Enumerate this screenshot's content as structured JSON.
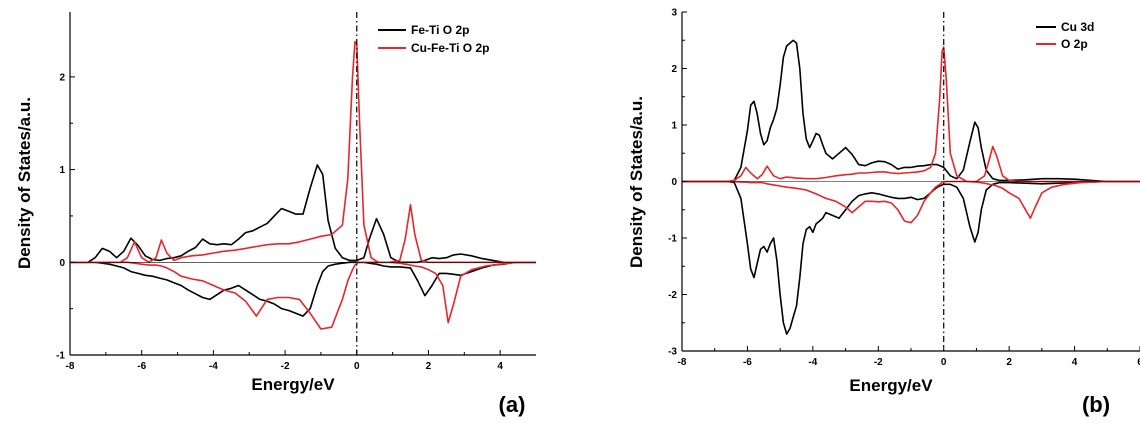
{
  "chart_data": [
    {
      "type": "line",
      "panel_label": "(a)",
      "xlabel": "Energy/eV",
      "ylabel": "Density of States/a.u.",
      "xlim": [
        -8,
        5
      ],
      "ylim": [
        -1,
        2.7
      ],
      "xticks": [
        -8,
        -6,
        -4,
        -2,
        0,
        2,
        4
      ],
      "yticks": [
        -1,
        0,
        1,
        2
      ],
      "fermi_level": 0,
      "legend_position": "top-right",
      "series": [
        {
          "name": "Fe-Ti O 2p",
          "color": "#000000",
          "x": [
            -8,
            -7.5,
            -7.3,
            -7.1,
            -6.9,
            -6.7,
            -6.5,
            -6.3,
            -6.1,
            -5.9,
            -5.7,
            -5.5,
            -5.3,
            -5.1,
            -4.9,
            -4.7,
            -4.5,
            -4.3,
            -4.1,
            -3.9,
            -3.7,
            -3.5,
            -3.3,
            -3.1,
            -2.9,
            -2.7,
            -2.5,
            -2.3,
            -2.1,
            -1.9,
            -1.7,
            -1.5,
            -1.3,
            -1.1,
            -0.95,
            -0.8,
            -0.6,
            -0.4,
            -0.2,
            0,
            0.2,
            0.35,
            0.55,
            0.75,
            0.95,
            1.2,
            1.5,
            1.7,
            1.9,
            2.1,
            2.3,
            2.5,
            2.7,
            2.9,
            3.2,
            3.5,
            3.8,
            4.1,
            4.4,
            4.7,
            5
          ],
          "y_up": [
            0,
            0,
            0.05,
            0.15,
            0.12,
            0.05,
            0.12,
            0.26,
            0.18,
            0.07,
            0.03,
            0.02,
            0.04,
            0.05,
            0.07,
            0.12,
            0.16,
            0.25,
            0.2,
            0.19,
            0.2,
            0.19,
            0.25,
            0.32,
            0.34,
            0.38,
            0.42,
            0.5,
            0.58,
            0.55,
            0.52,
            0.52,
            0.8,
            1.05,
            0.95,
            0.45,
            0.15,
            0.05,
            0.02,
            0.02,
            0.05,
            0.25,
            0.47,
            0.3,
            0.05,
            0,
            0,
            0,
            0.02,
            0.05,
            0.04,
            0.05,
            0.08,
            0.09,
            0.07,
            0.04,
            0.02,
            0,
            0,
            0,
            0
          ],
          "y_down": [
            0,
            0,
            0,
            -0.01,
            -0.02,
            -0.04,
            -0.06,
            -0.1,
            -0.12,
            -0.14,
            -0.15,
            -0.17,
            -0.19,
            -0.22,
            -0.25,
            -0.3,
            -0.34,
            -0.38,
            -0.4,
            -0.35,
            -0.3,
            -0.28,
            -0.25,
            -0.3,
            -0.35,
            -0.4,
            -0.42,
            -0.45,
            -0.5,
            -0.52,
            -0.55,
            -0.58,
            -0.5,
            -0.25,
            -0.1,
            -0.04,
            -0.02,
            -0.01,
            0,
            0,
            0,
            -0.01,
            -0.02,
            -0.04,
            -0.05,
            -0.05,
            -0.06,
            -0.2,
            -0.36,
            -0.25,
            -0.12,
            -0.12,
            -0.13,
            -0.14,
            -0.1,
            -0.06,
            -0.03,
            -0.02,
            0,
            0,
            0
          ]
        },
        {
          "name": "Cu-Fe-Ti O 2p",
          "color": "#e8262a",
          "x": [
            -8,
            -7,
            -6.6,
            -6.4,
            -6.2,
            -6.0,
            -5.8,
            -5.6,
            -5.45,
            -5.3,
            -5.1,
            -4.9,
            -4.6,
            -4.3,
            -4.0,
            -3.7,
            -3.4,
            -3.1,
            -2.8,
            -2.5,
            -2.2,
            -1.9,
            -1.6,
            -1.3,
            -1.0,
            -0.7,
            -0.4,
            -0.25,
            -0.12,
            -0.05,
            0,
            0.08,
            0.2,
            0.4,
            0.6,
            0.9,
            1.2,
            1.35,
            1.5,
            1.62,
            1.8,
            2.0,
            2.2,
            2.4,
            2.55,
            2.7,
            2.9,
            3.2,
            3.6,
            4.0,
            4.5,
            5
          ],
          "y_up": [
            0,
            0,
            0,
            0.05,
            0.22,
            0.05,
            0,
            0.05,
            0.24,
            0.1,
            0.02,
            0.05,
            0.07,
            0.08,
            0.1,
            0.12,
            0.13,
            0.15,
            0.17,
            0.19,
            0.2,
            0.2,
            0.22,
            0.25,
            0.28,
            0.3,
            0.4,
            0.9,
            2.0,
            2.38,
            2.35,
            1.5,
            0.4,
            0.05,
            0,
            0,
            0.02,
            0.25,
            0.62,
            0.3,
            0.02,
            0,
            0,
            0,
            0,
            0,
            0,
            0,
            0,
            0,
            0,
            0
          ],
          "y_down": [
            0,
            0,
            0,
            0,
            -0.01,
            -0.02,
            -0.03,
            -0.03,
            -0.04,
            -0.06,
            -0.1,
            -0.15,
            -0.18,
            -0.2,
            -0.25,
            -0.3,
            -0.33,
            -0.42,
            -0.58,
            -0.4,
            -0.38,
            -0.38,
            -0.4,
            -0.55,
            -0.72,
            -0.7,
            -0.4,
            -0.2,
            -0.08,
            -0.03,
            -0.01,
            0,
            0,
            0,
            0,
            0,
            -0.01,
            -0.02,
            -0.03,
            -0.04,
            -0.05,
            -0.08,
            -0.12,
            -0.25,
            -0.65,
            -0.45,
            -0.15,
            -0.08,
            -0.04,
            -0.02,
            0,
            0
          ]
        }
      ]
    },
    {
      "type": "line",
      "panel_label": "(b)",
      "xlabel": "Energy/eV",
      "ylabel": "Density of States/a.u.",
      "xlim": [
        -8,
        6
      ],
      "ylim": [
        -3,
        3
      ],
      "xticks": [
        -8,
        -6,
        -4,
        -2,
        0,
        2,
        4,
        6
      ],
      "yticks": [
        -3,
        -2,
        -1,
        0,
        1,
        2,
        3
      ],
      "fermi_level": 0,
      "legend_position": "top-right",
      "series": [
        {
          "name": "Cu 3d",
          "color": "#000000",
          "x": [
            -8,
            -6.6,
            -6.4,
            -6.2,
            -6.0,
            -5.9,
            -5.8,
            -5.7,
            -5.6,
            -5.5,
            -5.4,
            -5.3,
            -5.2,
            -5.1,
            -5.0,
            -4.9,
            -4.8,
            -4.7,
            -4.6,
            -4.5,
            -4.4,
            -4.3,
            -4.2,
            -4.1,
            -4.0,
            -3.9,
            -3.8,
            -3.7,
            -3.6,
            -3.4,
            -3.2,
            -3.0,
            -2.8,
            -2.6,
            -2.4,
            -2.2,
            -2.0,
            -1.8,
            -1.6,
            -1.4,
            -1.2,
            -1.0,
            -0.8,
            -0.6,
            -0.4,
            -0.2,
            0,
            0.2,
            0.4,
            0.6,
            0.8,
            0.95,
            1.05,
            1.15,
            1.3,
            1.5,
            1.7,
            2.0,
            2.5,
            3.0,
            3.5,
            4.0,
            4.5,
            5.0,
            6
          ],
          "y_up": [
            0,
            0,
            0.02,
            0.25,
            0.9,
            1.35,
            1.42,
            1.2,
            0.85,
            0.65,
            0.72,
            0.95,
            1.1,
            1.3,
            1.7,
            2.2,
            2.4,
            2.45,
            2.5,
            2.45,
            2.0,
            1.2,
            0.75,
            0.6,
            0.72,
            0.85,
            0.82,
            0.65,
            0.5,
            0.4,
            0.5,
            0.6,
            0.48,
            0.3,
            0.28,
            0.33,
            0.36,
            0.35,
            0.3,
            0.22,
            0.25,
            0.25,
            0.27,
            0.28,
            0.3,
            0.3,
            0.25,
            0.1,
            0.05,
            0.2,
            0.7,
            1.05,
            0.95,
            0.6,
            0.2,
            0.05,
            0.02,
            0.02,
            0.03,
            0.05,
            0.05,
            0.04,
            0.02,
            0,
            0
          ],
          "y_down": [
            0,
            0,
            -0.02,
            -0.3,
            -1.1,
            -1.55,
            -1.7,
            -1.45,
            -1.2,
            -1.15,
            -1.25,
            -1.1,
            -1.0,
            -1.4,
            -2.0,
            -2.5,
            -2.7,
            -2.6,
            -2.4,
            -2.2,
            -1.7,
            -1.1,
            -0.85,
            -0.8,
            -0.9,
            -0.75,
            -0.7,
            -0.65,
            -0.55,
            -0.6,
            -0.65,
            -0.5,
            -0.35,
            -0.25,
            -0.22,
            -0.2,
            -0.22,
            -0.25,
            -0.28,
            -0.3,
            -0.3,
            -0.28,
            -0.32,
            -0.3,
            -0.2,
            -0.1,
            -0.05,
            -0.05,
            -0.1,
            -0.3,
            -0.8,
            -1.07,
            -0.9,
            -0.5,
            -0.15,
            -0.05,
            -0.02,
            -0.02,
            -0.03,
            -0.04,
            -0.03,
            -0.02,
            -0.01,
            0,
            0
          ]
        },
        {
          "name": "O 2p",
          "color": "#e8262a",
          "x": [
            -8,
            -6.6,
            -6.4,
            -6.2,
            -6.05,
            -5.9,
            -5.7,
            -5.55,
            -5.4,
            -5.2,
            -5.0,
            -4.8,
            -4.5,
            -4.2,
            -3.9,
            -3.6,
            -3.3,
            -3.0,
            -2.8,
            -2.6,
            -2.4,
            -2.2,
            -2.0,
            -1.8,
            -1.6,
            -1.4,
            -1.2,
            -1.0,
            -0.8,
            -0.6,
            -0.4,
            -0.25,
            -0.12,
            -0.05,
            0,
            0.08,
            0.2,
            0.4,
            0.7,
            1.0,
            1.25,
            1.4,
            1.5,
            1.62,
            1.8,
            2.0,
            2.3,
            2.5,
            2.65,
            2.8,
            3.0,
            3.3,
            3.7,
            4.2,
            5.0,
            6
          ],
          "y_up": [
            0,
            0,
            0.02,
            0.1,
            0.25,
            0.15,
            0.05,
            0.12,
            0.27,
            0.1,
            0.05,
            0.08,
            0.06,
            0.05,
            0.05,
            0.07,
            0.1,
            0.12,
            0.13,
            0.15,
            0.15,
            0.16,
            0.17,
            0.17,
            0.15,
            0.14,
            0.15,
            0.16,
            0.17,
            0.19,
            0.25,
            0.5,
            1.5,
            2.3,
            2.38,
            1.8,
            0.5,
            0.1,
            0,
            0,
            0.1,
            0.4,
            0.62,
            0.45,
            0.1,
            0.02,
            0,
            0,
            0,
            0,
            0,
            0,
            0,
            0,
            0,
            0
          ],
          "y_down": [
            0,
            0,
            0,
            -0.01,
            -0.01,
            -0.02,
            -0.02,
            -0.02,
            -0.04,
            -0.06,
            -0.08,
            -0.1,
            -0.12,
            -0.15,
            -0.22,
            -0.3,
            -0.35,
            -0.45,
            -0.55,
            -0.45,
            -0.35,
            -0.35,
            -0.36,
            -0.35,
            -0.38,
            -0.5,
            -0.7,
            -0.73,
            -0.6,
            -0.35,
            -0.2,
            -0.1,
            -0.05,
            -0.02,
            -0.01,
            0,
            0,
            0,
            0,
            -0.01,
            -0.03,
            -0.05,
            -0.06,
            -0.08,
            -0.12,
            -0.2,
            -0.3,
            -0.5,
            -0.65,
            -0.45,
            -0.2,
            -0.1,
            -0.05,
            -0.02,
            0,
            0
          ]
        }
      ]
    }
  ]
}
